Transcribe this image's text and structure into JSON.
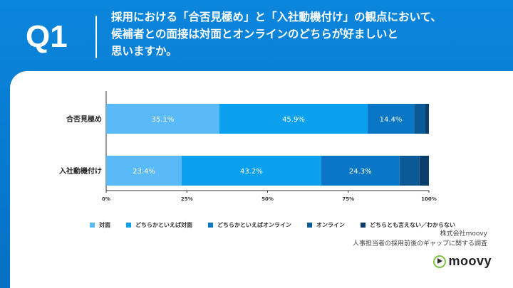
{
  "header": {
    "q_label": "Q1",
    "question_lines": [
      "採用における「合否見極め」と「入社動機付け」の観点において、",
      "候補者との面接は対面とオンラインのどちらが好ましいと",
      "思いますか。"
    ]
  },
  "colors": {
    "header_bg": "#0a86dc",
    "series": [
      "#5ab9f7",
      "#0aa0ee",
      "#0a77c6",
      "#0b5a96",
      "#0a3d6b"
    ]
  },
  "chart_data": {
    "type": "bar",
    "orientation": "horizontal",
    "stacked": true,
    "categories": [
      "合否見極め",
      "入社動機付け"
    ],
    "series": [
      {
        "name": "対面",
        "values": [
          35.1,
          23.4
        ],
        "labels": [
          "35.1%",
          "23.4%"
        ]
      },
      {
        "name": "どちらかといえば対面",
        "values": [
          45.9,
          43.2
        ],
        "labels": [
          "45.9%",
          "43.2%"
        ]
      },
      {
        "name": "どちらかといえばオンライン",
        "values": [
          14.4,
          24.3
        ],
        "labels": [
          "14.4%",
          "24.3%"
        ]
      },
      {
        "name": "オンライン",
        "values": [
          3.5,
          6.2
        ],
        "labels": [
          "",
          ""
        ]
      },
      {
        "name": "どちらとも言えない／わからない",
        "values": [
          1.1,
          2.9
        ],
        "labels": [
          "",
          ""
        ]
      }
    ],
    "xlim": [
      0,
      100
    ],
    "x_ticks": [
      "0%",
      "25%",
      "50%",
      "75%",
      "100%"
    ],
    "legend_position": "bottom"
  },
  "source": {
    "line1": "株式会社moovy",
    "line2": "人事担当者の採用前後のギャップに関する調査"
  },
  "logo": {
    "text": "moovy"
  }
}
